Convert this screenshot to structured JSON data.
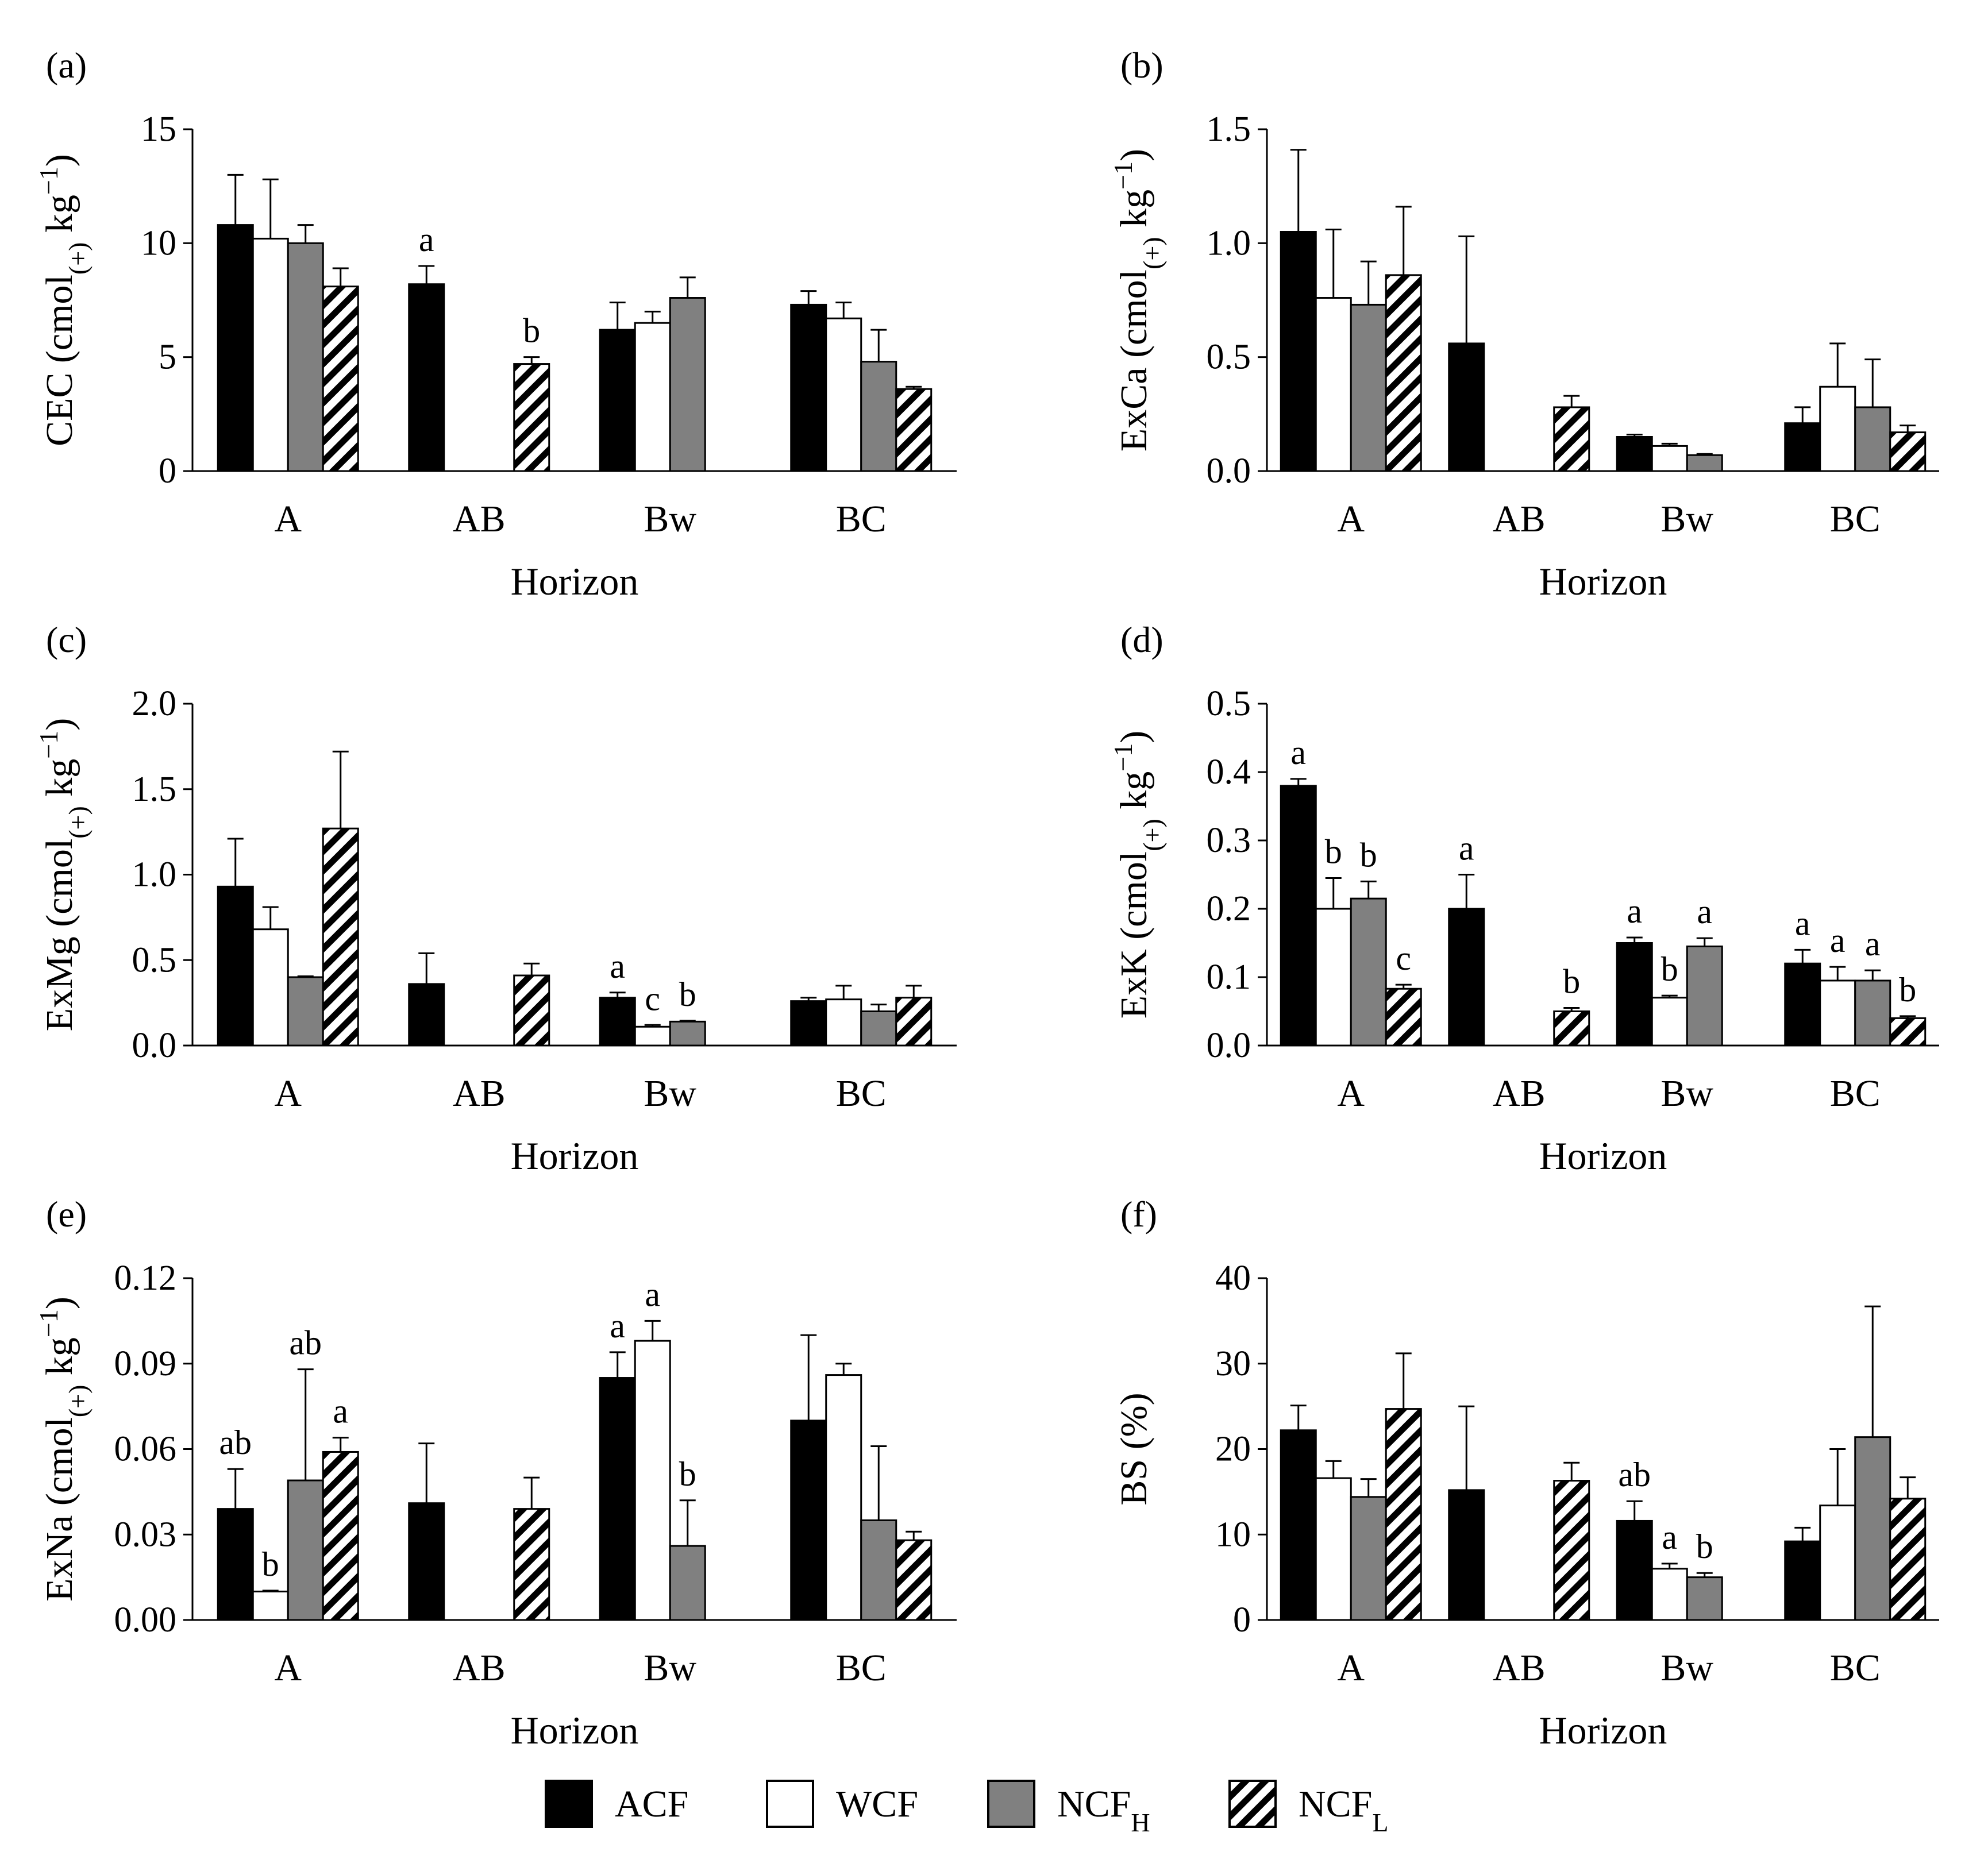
{
  "colors": {
    "ACF": "#000000",
    "WCF": "#ffffff",
    "NCF_H": "#808080",
    "NCF_L": "hatch",
    "axis": "#000000"
  },
  "legend": [
    {
      "key": "ACF",
      "label": "ACF",
      "sub": ""
    },
    {
      "key": "WCF",
      "label": "WCF",
      "sub": ""
    },
    {
      "key": "NCF_H",
      "label": "NCF",
      "sub": "H"
    },
    {
      "key": "NCF_L",
      "label": "NCF",
      "sub": "L"
    }
  ],
  "chart_data": [
    {
      "panel": "(a)",
      "type": "bar",
      "xlabel": "Horizon",
      "ylabel_parts": [
        "CEC (cmol",
        "(+)",
        " kg",
        "−1",
        ")"
      ],
      "ylim": [
        0,
        15
      ],
      "yticks": [
        "0",
        "5",
        "10",
        "15"
      ],
      "categories": [
        "A",
        "AB",
        "Bw",
        "BC"
      ],
      "series": [
        {
          "name": "ACF",
          "values": [
            10.8,
            8.2,
            6.2,
            7.3
          ],
          "errors": [
            2.2,
            0.8,
            1.2,
            0.6
          ],
          "labels": [
            "",
            "a",
            "",
            ""
          ]
        },
        {
          "name": "WCF",
          "values": [
            10.2,
            null,
            6.5,
            6.7
          ],
          "errors": [
            2.6,
            null,
            0.5,
            0.7
          ],
          "labels": [
            "",
            "",
            "",
            ""
          ]
        },
        {
          "name": "NCF_H",
          "values": [
            10.0,
            null,
            7.6,
            4.8
          ],
          "errors": [
            0.8,
            null,
            0.9,
            1.4
          ],
          "labels": [
            "",
            "",
            "",
            ""
          ]
        },
        {
          "name": "NCF_L",
          "values": [
            8.1,
            4.7,
            null,
            3.6
          ],
          "errors": [
            0.8,
            0.3,
            null,
            0.1
          ],
          "labels": [
            "",
            "b",
            "",
            ""
          ]
        }
      ]
    },
    {
      "panel": "(b)",
      "type": "bar",
      "xlabel": "Horizon",
      "ylabel_parts": [
        "ExCa (cmol",
        "(+)",
        " kg",
        "−1",
        ")"
      ],
      "ylim": [
        0,
        1.5
      ],
      "yticks": [
        "0.0",
        "0.5",
        "1.0",
        "1.5"
      ],
      "categories": [
        "A",
        "AB",
        "Bw",
        "BC"
      ],
      "series": [
        {
          "name": "ACF",
          "values": [
            1.05,
            0.56,
            0.15,
            0.21
          ],
          "errors": [
            0.36,
            0.47,
            0.01,
            0.07
          ],
          "labels": [
            "",
            "",
            "",
            ""
          ]
        },
        {
          "name": "WCF",
          "values": [
            0.76,
            null,
            0.11,
            0.37
          ],
          "errors": [
            0.3,
            null,
            0.01,
            0.19
          ],
          "labels": [
            "",
            "",
            "",
            ""
          ]
        },
        {
          "name": "NCF_H",
          "values": [
            0.73,
            null,
            0.07,
            0.28
          ],
          "errors": [
            0.19,
            null,
            0.005,
            0.21
          ],
          "labels": [
            "",
            "",
            "",
            ""
          ]
        },
        {
          "name": "NCF_L",
          "values": [
            0.86,
            0.28,
            null,
            0.17
          ],
          "errors": [
            0.3,
            0.05,
            null,
            0.03
          ],
          "labels": [
            "",
            "",
            "",
            ""
          ]
        }
      ]
    },
    {
      "panel": "(c)",
      "type": "bar",
      "xlabel": "Horizon",
      "ylabel_parts": [
        "ExMg (cmol",
        "(+)",
        " kg",
        "−1",
        ")"
      ],
      "ylim": [
        0,
        2.0
      ],
      "yticks": [
        "0.0",
        "0.5",
        "1.0",
        "1.5",
        "2.0"
      ],
      "categories": [
        "A",
        "AB",
        "Bw",
        "BC"
      ],
      "series": [
        {
          "name": "ACF",
          "values": [
            0.93,
            0.36,
            0.28,
            0.26
          ],
          "errors": [
            0.28,
            0.18,
            0.03,
            0.02
          ],
          "labels": [
            "",
            "",
            "a",
            ""
          ]
        },
        {
          "name": "WCF",
          "values": [
            0.68,
            null,
            0.11,
            0.27
          ],
          "errors": [
            0.13,
            null,
            0.01,
            0.08
          ],
          "labels": [
            "",
            "",
            "c",
            ""
          ]
        },
        {
          "name": "NCF_H",
          "values": [
            0.4,
            null,
            0.14,
            0.2
          ],
          "errors": [
            0.005,
            null,
            0.005,
            0.04
          ],
          "labels": [
            "",
            "",
            "b",
            ""
          ]
        },
        {
          "name": "NCF_L",
          "values": [
            1.27,
            0.41,
            null,
            0.28
          ],
          "errors": [
            0.45,
            0.07,
            null,
            0.07
          ],
          "labels": [
            "",
            "",
            "",
            ""
          ]
        }
      ]
    },
    {
      "panel": "(d)",
      "type": "bar",
      "xlabel": "Horizon",
      "ylabel_parts": [
        "ExK (cmol",
        "(+)",
        " kg",
        "−1",
        ")"
      ],
      "ylim": [
        0,
        0.5
      ],
      "yticks": [
        "0.0",
        "0.1",
        "0.2",
        "0.3",
        "0.4",
        "0.5"
      ],
      "categories": [
        "A",
        "AB",
        "Bw",
        "BC"
      ],
      "series": [
        {
          "name": "ACF",
          "values": [
            0.38,
            0.2,
            0.15,
            0.12
          ],
          "errors": [
            0.01,
            0.05,
            0.008,
            0.02
          ],
          "labels": [
            "a",
            "a",
            "a",
            "a"
          ]
        },
        {
          "name": "WCF",
          "values": [
            0.2,
            null,
            0.07,
            0.095
          ],
          "errors": [
            0.045,
            null,
            0.003,
            0.02
          ],
          "labels": [
            "b",
            "",
            "b",
            "a"
          ]
        },
        {
          "name": "NCF_H",
          "values": [
            0.215,
            null,
            0.145,
            0.095
          ],
          "errors": [
            0.025,
            null,
            0.012,
            0.015
          ],
          "labels": [
            "b",
            "",
            "a",
            "a"
          ]
        },
        {
          "name": "NCF_L",
          "values": [
            0.083,
            0.05,
            null,
            0.04
          ],
          "errors": [
            0.006,
            0.005,
            null,
            0.003
          ],
          "labels": [
            "c",
            "b",
            "",
            "b"
          ]
        }
      ]
    },
    {
      "panel": "(e)",
      "type": "bar",
      "xlabel": "Horizon",
      "ylabel_parts": [
        "ExNa (cmol",
        "(+)",
        " kg",
        "−1",
        ")"
      ],
      "ylim": [
        0,
        0.12
      ],
      "yticks": [
        "0.00",
        "0.03",
        "0.06",
        "0.09",
        "0.12"
      ],
      "categories": [
        "A",
        "AB",
        "Bw",
        "BC"
      ],
      "series": [
        {
          "name": "ACF",
          "values": [
            0.039,
            0.041,
            0.085,
            0.07
          ],
          "errors": [
            0.014,
            0.021,
            0.009,
            0.03
          ],
          "labels": [
            "ab",
            "",
            "a",
            ""
          ]
        },
        {
          "name": "WCF",
          "values": [
            0.01,
            null,
            0.098,
            0.086
          ],
          "errors": [
            0.0003,
            null,
            0.007,
            0.004
          ],
          "labels": [
            "b",
            "",
            "a",
            ""
          ]
        },
        {
          "name": "NCF_H",
          "values": [
            0.049,
            null,
            0.026,
            0.035
          ],
          "errors": [
            0.039,
            null,
            0.016,
            0.026
          ],
          "labels": [
            "ab",
            "",
            "b",
            ""
          ]
        },
        {
          "name": "NCF_L",
          "values": [
            0.059,
            0.039,
            null,
            0.028
          ],
          "errors": [
            0.005,
            0.011,
            null,
            0.003
          ],
          "labels": [
            "a",
            "",
            "",
            ""
          ]
        }
      ]
    },
    {
      "panel": "(f)",
      "type": "bar",
      "xlabel": "Horizon",
      "ylabel_parts": [
        "BS (%)"
      ],
      "ylim": [
        0,
        40
      ],
      "yticks": [
        "0",
        "10",
        "20",
        "30",
        "40"
      ],
      "categories": [
        "A",
        "AB",
        "Bw",
        "BC"
      ],
      "series": [
        {
          "name": "ACF",
          "values": [
            22.2,
            15.2,
            11.6,
            9.2
          ],
          "errors": [
            2.9,
            9.8,
            2.3,
            1.6
          ],
          "labels": [
            "",
            "",
            "ab",
            ""
          ]
        },
        {
          "name": "WCF",
          "values": [
            16.6,
            null,
            6.0,
            13.4
          ],
          "errors": [
            2.0,
            null,
            0.6,
            6.6
          ],
          "labels": [
            "",
            "",
            "a",
            ""
          ]
        },
        {
          "name": "NCF_H",
          "values": [
            14.4,
            null,
            5.0,
            21.4
          ],
          "errors": [
            2.1,
            null,
            0.5,
            15.3
          ],
          "labels": [
            "",
            "",
            "b",
            ""
          ]
        },
        {
          "name": "NCF_L",
          "values": [
            24.7,
            16.3,
            null,
            14.2
          ],
          "errors": [
            6.5,
            2.1,
            null,
            2.5
          ],
          "labels": [
            "",
            "",
            "",
            ""
          ]
        }
      ]
    }
  ]
}
